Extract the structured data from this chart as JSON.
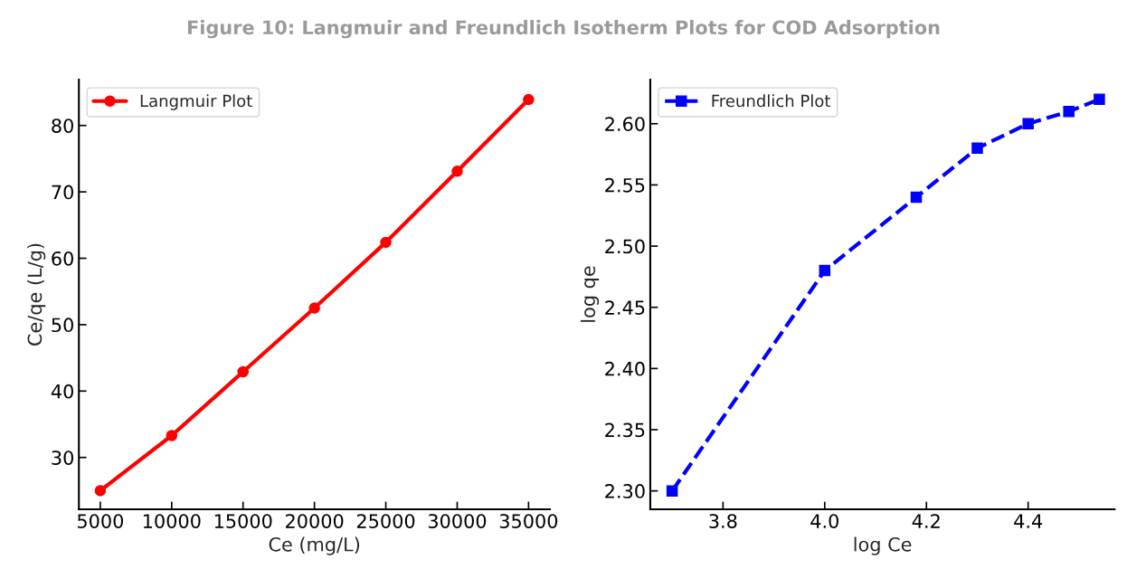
{
  "chart_data": [
    {
      "type": "line",
      "title": "Figure 10: Langmuir and Freundlich Isotherm Plots for COD Adsorption",
      "xlabel": "Ce (mg/L)",
      "ylabel": "Ce/qe (L/g)",
      "x": [
        5000,
        10000,
        15000,
        20000,
        25000,
        30000,
        35000
      ],
      "series": [
        {
          "name": "Langmuir Plot",
          "color": "#ff0000",
          "values": [
            25.0,
            33.3,
            42.9,
            52.5,
            62.4,
            73.1,
            83.9
          ]
        }
      ],
      "marker": "circle",
      "line_style": "solid",
      "legend": "top left",
      "grid": false,
      "xlim": [
        3500,
        36500
      ],
      "ylim": [
        22.2,
        86.9
      ],
      "xticks": [
        5000,
        10000,
        15000,
        20000,
        25000,
        30000,
        35000
      ],
      "yticks": [
        30,
        40,
        50,
        60,
        70,
        80
      ]
    },
    {
      "type": "line",
      "xlabel": "log Ce",
      "ylabel": "log qe",
      "x": [
        3.7,
        4.0,
        4.18,
        4.3,
        4.4,
        4.48,
        4.54
      ],
      "series": [
        {
          "name": "Freundlich Plot",
          "color": "#0000ff",
          "values": [
            2.3,
            2.48,
            2.54,
            2.58,
            2.6,
            2.61,
            2.62
          ]
        }
      ],
      "marker": "square",
      "line_style": "dashed",
      "legend": "top left",
      "grid": false,
      "xlim": [
        3.657,
        4.57
      ],
      "ylim": [
        2.285,
        2.636
      ],
      "xticks": [
        {
          "value": 3.8,
          "label": "3.8"
        },
        {
          "value": 4.0,
          "label": "4.0"
        },
        {
          "value": 4.2,
          "label": "4.2"
        },
        {
          "value": 4.4,
          "label": "4.4"
        }
      ],
      "yticks": [
        {
          "value": 2.3,
          "label": "2.30"
        },
        {
          "value": 2.35,
          "label": "2.35"
        },
        {
          "value": 2.4,
          "label": "2.40"
        },
        {
          "value": 2.45,
          "label": "2.45"
        },
        {
          "value": 2.5,
          "label": "2.50"
        },
        {
          "value": 2.55,
          "label": "2.55"
        },
        {
          "value": 2.6,
          "label": "2.60"
        }
      ]
    }
  ]
}
